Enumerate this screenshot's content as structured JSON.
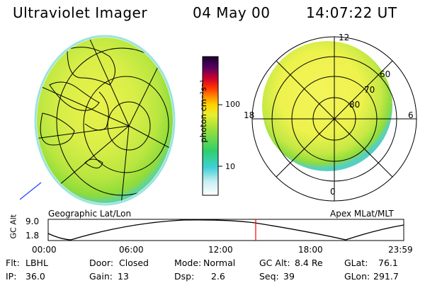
{
  "header": {
    "title": "Ultraviolet Imager",
    "date": "04 May 00",
    "time": "14:07:22 UT"
  },
  "maps": {
    "left_label": "Geographic Lat/Lon",
    "right_label": "Apex MLat/MLT",
    "polar_lat_labels": [
      "60",
      "70",
      "80"
    ],
    "polar_mlt_labels": {
      "top": "12",
      "left": "18",
      "right": "6",
      "bottom": "0"
    }
  },
  "colorbar": {
    "unit_label": "photon cm⁻²s⁻¹",
    "ticks": [
      "100",
      "10"
    ]
  },
  "altitude_plot": {
    "ylabel": "GC Alt",
    "yticks": [
      "9.0",
      "1.8"
    ],
    "xticks": [
      "00:00",
      "06:00",
      "12:00",
      "18:00",
      "23:59"
    ]
  },
  "footer": {
    "rows": [
      [
        {
          "key": "Flt:",
          "value": "LBHL"
        },
        {
          "key": "Door:",
          "value": "Closed"
        },
        {
          "key": "Mode:",
          "value": "Normal"
        },
        {
          "key": "GC Alt:",
          "value": "8.4 Re"
        },
        {
          "key": "GLat:",
          "value": "76.1"
        }
      ],
      [
        {
          "key": "IP:",
          "value": "36.0"
        },
        {
          "key": "Gain:",
          "value": "13"
        },
        {
          "key": "Dsp:",
          "value": "2.6"
        },
        {
          "key": "Seq:",
          "value": "39"
        },
        {
          "key": "GLon:",
          "value": "291.7"
        }
      ]
    ]
  },
  "colors": {
    "accent_line": "#ff0000",
    "auroral_low": "#4fd0e0",
    "auroral_mid": "#9be03a",
    "auroral_high": "#f2f040"
  }
}
